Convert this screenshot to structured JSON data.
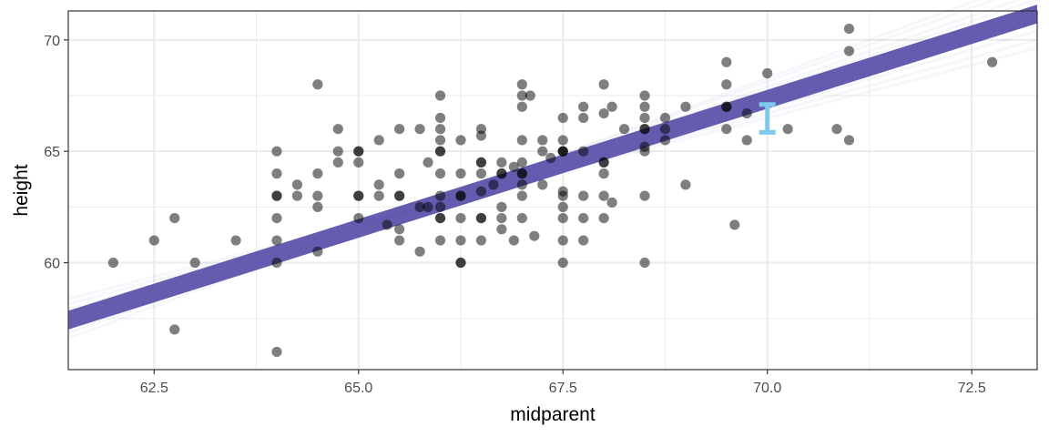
{
  "chart_data": {
    "type": "scatter",
    "title": "",
    "xlabel": "midparent",
    "ylabel": "height",
    "xlim": [
      61.45,
      73.3
    ],
    "ylim": [
      55.2,
      71.3
    ],
    "grid": true,
    "x_major_ticks": [
      62.5,
      65.0,
      67.5,
      70.0,
      72.5
    ],
    "x_tick_labels": [
      "62.5",
      "65.0",
      "67.5",
      "70.0",
      "72.5"
    ],
    "x_minor_ticks": [
      63.75,
      66.25,
      68.75,
      71.25
    ],
    "y_major_ticks": [
      60,
      65,
      70
    ],
    "y_tick_labels": [
      "60",
      "65",
      "70"
    ],
    "y_minor_ticks": [
      57.5,
      62.5,
      67.5
    ],
    "colors": {
      "points": "#000000",
      "regression_band": "#5b53ab",
      "interval": "#7ec8eb",
      "grid": "#ebebeb",
      "panel_border": "#333333"
    },
    "regression": {
      "intercept": -13.83,
      "slope": 1.1595,
      "band_halfwidth": 0.42,
      "draws": [
        {
          "intercept": -27.4,
          "slope": 1.367
        },
        {
          "intercept": 0.0,
          "slope": 0.95
        },
        {
          "intercept": -21.0,
          "slope": 1.27
        },
        {
          "intercept": -7.0,
          "slope": 1.056
        },
        {
          "intercept": -24.4,
          "slope": 1.322
        },
        {
          "intercept": -3.3,
          "slope": 1.0
        },
        {
          "intercept": -18.2,
          "slope": 1.228
        },
        {
          "intercept": -10.2,
          "slope": 1.105
        }
      ]
    },
    "interval": {
      "x": 70.0,
      "lower": 65.85,
      "upper": 67.1
    },
    "points": [
      {
        "x": 62.0,
        "y": 60.0
      },
      {
        "x": 62.5,
        "y": 61.0
      },
      {
        "x": 62.75,
        "y": 62.0
      },
      {
        "x": 62.75,
        "y": 57.0
      },
      {
        "x": 63.0,
        "y": 60.0
      },
      {
        "x": 63.5,
        "y": 61.0
      },
      {
        "x": 64.0,
        "y": 65.0
      },
      {
        "x": 64.0,
        "y": 64.0
      },
      {
        "x": 64.0,
        "y": 63.0
      },
      {
        "x": 64.0,
        "y": 63.0
      },
      {
        "x": 64.0,
        "y": 62.0
      },
      {
        "x": 64.0,
        "y": 61.0
      },
      {
        "x": 64.0,
        "y": 60.0
      },
      {
        "x": 64.0,
        "y": 56.0
      },
      {
        "x": 64.25,
        "y": 63.5
      },
      {
        "x": 64.25,
        "y": 63.0
      },
      {
        "x": 64.5,
        "y": 68.0
      },
      {
        "x": 64.5,
        "y": 64.0
      },
      {
        "x": 64.5,
        "y": 63.0
      },
      {
        "x": 64.5,
        "y": 62.5
      },
      {
        "x": 64.5,
        "y": 60.5
      },
      {
        "x": 64.75,
        "y": 66.0
      },
      {
        "x": 64.75,
        "y": 65.0
      },
      {
        "x": 64.75,
        "y": 64.5
      },
      {
        "x": 65.0,
        "y": 65.0
      },
      {
        "x": 65.0,
        "y": 65.0
      },
      {
        "x": 65.0,
        "y": 64.5
      },
      {
        "x": 65.0,
        "y": 63.0
      },
      {
        "x": 65.0,
        "y": 63.0
      },
      {
        "x": 65.0,
        "y": 62.0
      },
      {
        "x": 65.25,
        "y": 65.5
      },
      {
        "x": 65.25,
        "y": 63.5
      },
      {
        "x": 65.25,
        "y": 63.0
      },
      {
        "x": 65.35,
        "y": 61.7
      },
      {
        "x": 65.5,
        "y": 66.0
      },
      {
        "x": 65.5,
        "y": 64.0
      },
      {
        "x": 65.5,
        "y": 63.0
      },
      {
        "x": 65.5,
        "y": 63.0
      },
      {
        "x": 65.5,
        "y": 61.5
      },
      {
        "x": 65.5,
        "y": 61.0
      },
      {
        "x": 65.75,
        "y": 66.0
      },
      {
        "x": 65.75,
        "y": 62.5
      },
      {
        "x": 65.75,
        "y": 60.5
      },
      {
        "x": 65.85,
        "y": 64.5
      },
      {
        "x": 65.85,
        "y": 62.5
      },
      {
        "x": 66.0,
        "y": 67.5
      },
      {
        "x": 66.0,
        "y": 66.5
      },
      {
        "x": 66.0,
        "y": 66.0
      },
      {
        "x": 66.0,
        "y": 65.5
      },
      {
        "x": 66.0,
        "y": 65.0
      },
      {
        "x": 66.0,
        "y": 65.0
      },
      {
        "x": 66.0,
        "y": 64.0
      },
      {
        "x": 66.0,
        "y": 63.0
      },
      {
        "x": 66.0,
        "y": 62.5
      },
      {
        "x": 66.0,
        "y": 62.0
      },
      {
        "x": 66.0,
        "y": 62.0
      },
      {
        "x": 66.0,
        "y": 61.0
      },
      {
        "x": 66.25,
        "y": 65.5
      },
      {
        "x": 66.25,
        "y": 64.0
      },
      {
        "x": 66.25,
        "y": 63.0
      },
      {
        "x": 66.25,
        "y": 63.0
      },
      {
        "x": 66.25,
        "y": 62.0
      },
      {
        "x": 66.25,
        "y": 61.0
      },
      {
        "x": 66.25,
        "y": 60.0
      },
      {
        "x": 66.25,
        "y": 60.0
      },
      {
        "x": 66.5,
        "y": 66.0
      },
      {
        "x": 66.5,
        "y": 65.7
      },
      {
        "x": 66.5,
        "y": 64.5
      },
      {
        "x": 66.5,
        "y": 64.5
      },
      {
        "x": 66.5,
        "y": 64.0
      },
      {
        "x": 66.5,
        "y": 63.2
      },
      {
        "x": 66.5,
        "y": 62.0
      },
      {
        "x": 66.5,
        "y": 62.0
      },
      {
        "x": 66.5,
        "y": 61.0
      },
      {
        "x": 66.65,
        "y": 63.5
      },
      {
        "x": 66.75,
        "y": 64.5
      },
      {
        "x": 66.75,
        "y": 64.0
      },
      {
        "x": 66.75,
        "y": 64.0
      },
      {
        "x": 66.75,
        "y": 62.5
      },
      {
        "x": 66.75,
        "y": 62.0
      },
      {
        "x": 66.75,
        "y": 61.5
      },
      {
        "x": 66.9,
        "y": 61.0
      },
      {
        "x": 66.9,
        "y": 64.3
      },
      {
        "x": 67.0,
        "y": 68.0
      },
      {
        "x": 67.0,
        "y": 67.5
      },
      {
        "x": 67.0,
        "y": 67.0
      },
      {
        "x": 67.0,
        "y": 65.5
      },
      {
        "x": 67.0,
        "y": 64.5
      },
      {
        "x": 67.0,
        "y": 64.0
      },
      {
        "x": 67.0,
        "y": 64.0
      },
      {
        "x": 67.0,
        "y": 63.5
      },
      {
        "x": 67.0,
        "y": 63.0
      },
      {
        "x": 67.0,
        "y": 62.0
      },
      {
        "x": 67.1,
        "y": 67.5
      },
      {
        "x": 67.15,
        "y": 61.2
      },
      {
        "x": 67.25,
        "y": 65.5
      },
      {
        "x": 67.25,
        "y": 65.0
      },
      {
        "x": 67.25,
        "y": 63.5
      },
      {
        "x": 67.35,
        "y": 64.7
      },
      {
        "x": 67.5,
        "y": 66.5
      },
      {
        "x": 67.5,
        "y": 65.5
      },
      {
        "x": 67.5,
        "y": 65.0
      },
      {
        "x": 67.5,
        "y": 65.0
      },
      {
        "x": 67.5,
        "y": 65.0
      },
      {
        "x": 67.5,
        "y": 63.2
      },
      {
        "x": 67.5,
        "y": 63.0
      },
      {
        "x": 67.5,
        "y": 62.5
      },
      {
        "x": 67.5,
        "y": 62.0
      },
      {
        "x": 67.5,
        "y": 61.0
      },
      {
        "x": 67.5,
        "y": 60.0
      },
      {
        "x": 67.75,
        "y": 67.0
      },
      {
        "x": 67.75,
        "y": 66.5
      },
      {
        "x": 67.75,
        "y": 65.0
      },
      {
        "x": 67.75,
        "y": 63.0
      },
      {
        "x": 67.75,
        "y": 62.0
      },
      {
        "x": 67.75,
        "y": 61.0
      },
      {
        "x": 68.0,
        "y": 68.0
      },
      {
        "x": 68.0,
        "y": 66.7
      },
      {
        "x": 68.0,
        "y": 64.5
      },
      {
        "x": 68.0,
        "y": 64.5
      },
      {
        "x": 68.0,
        "y": 64.0
      },
      {
        "x": 68.0,
        "y": 63.0
      },
      {
        "x": 68.0,
        "y": 62.0
      },
      {
        "x": 68.1,
        "y": 67.0
      },
      {
        "x": 68.1,
        "y": 62.7
      },
      {
        "x": 68.25,
        "y": 66.0
      },
      {
        "x": 68.5,
        "y": 67.5
      },
      {
        "x": 68.5,
        "y": 67.0
      },
      {
        "x": 68.5,
        "y": 66.5
      },
      {
        "x": 68.5,
        "y": 66.0
      },
      {
        "x": 68.5,
        "y": 66.0
      },
      {
        "x": 68.5,
        "y": 65.2
      },
      {
        "x": 68.5,
        "y": 65.0
      },
      {
        "x": 68.5,
        "y": 63.0
      },
      {
        "x": 68.5,
        "y": 60.0
      },
      {
        "x": 68.75,
        "y": 66.5
      },
      {
        "x": 68.75,
        "y": 66.0
      },
      {
        "x": 68.75,
        "y": 65.5
      },
      {
        "x": 69.0,
        "y": 67.0
      },
      {
        "x": 69.0,
        "y": 63.5
      },
      {
        "x": 69.5,
        "y": 69.0
      },
      {
        "x": 69.5,
        "y": 68.0
      },
      {
        "x": 69.5,
        "y": 67.0
      },
      {
        "x": 69.5,
        "y": 67.0
      },
      {
        "x": 69.5,
        "y": 66.0
      },
      {
        "x": 69.6,
        "y": 61.7
      },
      {
        "x": 69.75,
        "y": 66.7
      },
      {
        "x": 69.75,
        "y": 65.5
      },
      {
        "x": 70.0,
        "y": 68.5
      },
      {
        "x": 70.25,
        "y": 66.0
      },
      {
        "x": 70.85,
        "y": 66.0
      },
      {
        "x": 71.0,
        "y": 70.5
      },
      {
        "x": 71.0,
        "y": 69.5
      },
      {
        "x": 71.0,
        "y": 65.5
      },
      {
        "x": 72.75,
        "y": 69.0
      }
    ]
  }
}
